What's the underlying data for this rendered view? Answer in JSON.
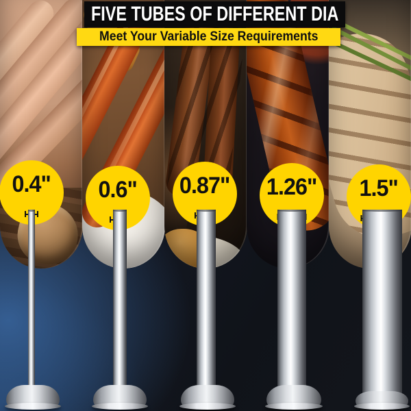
{
  "header": {
    "title": "FIVE TUBES OF DIFFERENT DIA",
    "subtitle": "Meet Your Variable Size Requirements"
  },
  "tubes": [
    {
      "diameter_label": "0.4\""
    },
    {
      "diameter_label": "0.6\""
    },
    {
      "diameter_label": "0.87\""
    },
    {
      "diameter_label": "1.26\""
    },
    {
      "diameter_label": "1.5\""
    }
  ],
  "photo_strips": [
    "raw-fresh-sausages-on-wood",
    "grilled-red-sausages-on-plate",
    "charred-brown-sausages",
    "glazed-scored-sausage",
    "pale-bratwurst-with-green-onions"
  ],
  "colors": {
    "accent_yellow": "#FFD400",
    "banner_yellow": "#FFD912",
    "banner_black": "#0B0B0C",
    "title_text": "#FFFFFF",
    "subtitle_text": "#101010",
    "metal_highlight": "#F4F6F8",
    "background_navy": "#1A2434"
  }
}
